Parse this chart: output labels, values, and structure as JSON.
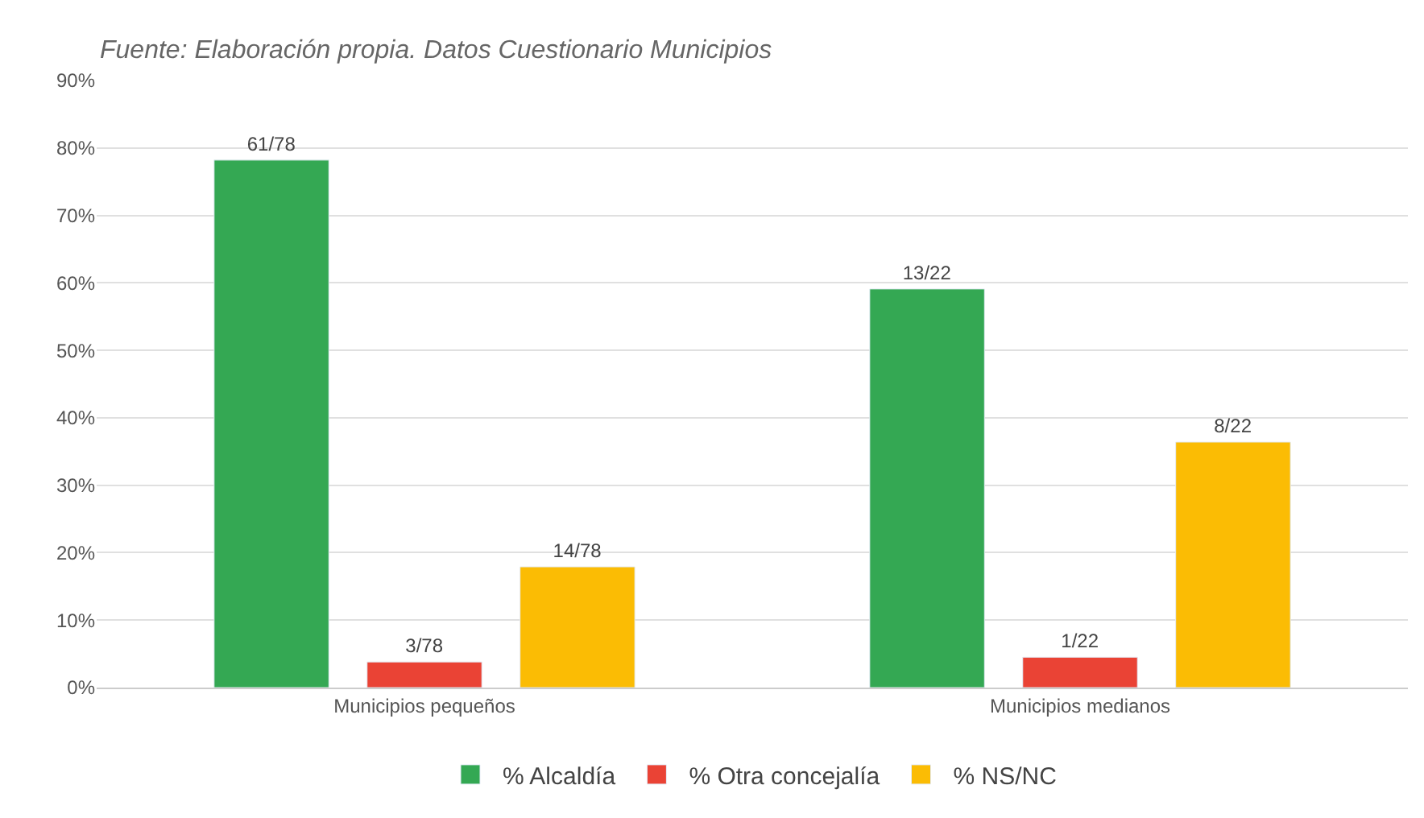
{
  "chart_data": {
    "type": "bar",
    "categories": [
      "Municipios pequeños",
      "Municipios medianos"
    ],
    "series": [
      {
        "name": "% Alcaldía",
        "color": "#34a853",
        "values": [
          78.2,
          59.1
        ],
        "value_labels": [
          "61/78",
          "13/22"
        ]
      },
      {
        "name": "% Otra concejalía",
        "color": "#ea4335",
        "values": [
          3.8,
          4.5
        ],
        "value_labels": [
          "3/78",
          "1/22"
        ]
      },
      {
        "name": "% NS/NC",
        "color": "#fbbc04",
        "values": [
          17.9,
          36.4
        ],
        "value_labels": [
          "14/78",
          "8/22"
        ]
      }
    ],
    "ylim": [
      0,
      90
    ],
    "yticks": [
      {
        "value": 0,
        "label": "0%"
      },
      {
        "value": 10,
        "label": "10%"
      },
      {
        "value": 20,
        "label": "20%"
      },
      {
        "value": 30,
        "label": "30%"
      },
      {
        "value": 40,
        "label": "40%"
      },
      {
        "value": 50,
        "label": "50%"
      },
      {
        "value": 60,
        "label": "60%"
      },
      {
        "value": 70,
        "label": "70%"
      },
      {
        "value": 80,
        "label": "80%"
      },
      {
        "value": 90,
        "label": "90%"
      }
    ],
    "grid": "y",
    "legend": "bottom",
    "annotations": [
      "Fuente: Elaboración propia. Datos Cuestionario Municipios"
    ]
  }
}
